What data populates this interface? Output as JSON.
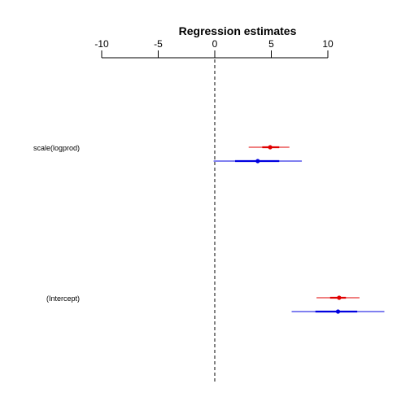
{
  "chart_data": {
    "type": "coefficient-plot",
    "title": "Regression estimates",
    "xlim": [
      -10,
      10
    ],
    "xticks": [
      -10,
      -5,
      0,
      5,
      10
    ],
    "xtick_labels": [
      "-10",
      "-5",
      "0",
      "5",
      "10"
    ],
    "axis_position": "top",
    "reference_line": {
      "x": 0,
      "style": "dashed"
    },
    "terms": [
      "scale(logprod)",
      "(Intercept)"
    ],
    "series": [
      {
        "color": "#e00000",
        "estimates": [
          {
            "term": "scale(logprod)",
            "estimate": 4.9,
            "ci_inner": [
              4.2,
              5.7
            ],
            "ci_outer": [
              3.0,
              6.6
            ]
          },
          {
            "term": "(Intercept)",
            "estimate": 11.0,
            "ci_inner": [
              10.2,
              11.6
            ],
            "ci_outer": [
              9.0,
              12.8
            ]
          }
        ]
      },
      {
        "color": "#0000e0",
        "estimates": [
          {
            "term": "scale(logprod)",
            "estimate": 3.8,
            "ci_inner": [
              1.8,
              5.7
            ],
            "ci_outer": [
              -0.1,
              7.7
            ]
          },
          {
            "term": "(Intercept)",
            "estimate": 10.9,
            "ci_inner": [
              8.9,
              12.6
            ],
            "ci_outer": [
              6.8,
              15.0
            ]
          }
        ]
      }
    ]
  }
}
